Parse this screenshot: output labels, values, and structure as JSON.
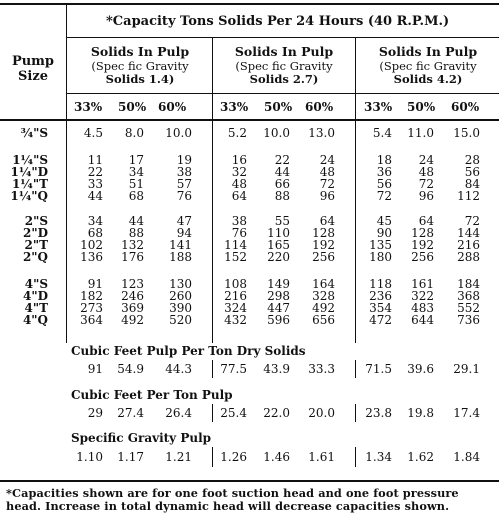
{
  "table": {
    "title": "*Capacity Tons Solids Per 24 Hours (40 R.P.M.)",
    "pump_size_label": [
      "Pump",
      "Size"
    ],
    "groups": [
      {
        "title": "Solids In Pulp",
        "sub1": "(Spec fic Gravity",
        "sub2": "Solids 1.4)"
      },
      {
        "title": "Solids In Pulp",
        "sub1": "(Spec fic Gravity",
        "sub2": "Solids 2.7)"
      },
      {
        "title": "Solids In Pulp",
        "sub1": "(Spec fic Gravity",
        "sub2": "Solids 4.2)"
      }
    ],
    "percent_headers": [
      "33%",
      "50%",
      "60%",
      "33%",
      "50%",
      "60%",
      "33%",
      "50%",
      "60%"
    ],
    "rows": [
      {
        "size": "¾\"S",
        "values": [
          "4.5",
          "8.0",
          "10.0",
          "5.2",
          "10.0",
          "13.0",
          "5.4",
          "11.0",
          "15.0"
        ]
      },
      {
        "size": "1¼\"S",
        "values": [
          "11",
          "17",
          "19",
          "16",
          "22",
          "24",
          "18",
          "24",
          "28"
        ]
      },
      {
        "size": "1¼\"D",
        "values": [
          "22",
          "34",
          "38",
          "32",
          "44",
          "48",
          "36",
          "48",
          "56"
        ]
      },
      {
        "size": "1¼\"T",
        "values": [
          "33",
          "51",
          "57",
          "48",
          "66",
          "72",
          "56",
          "72",
          "84"
        ]
      },
      {
        "size": "1¼\"Q",
        "values": [
          "44",
          "68",
          "76",
          "64",
          "88",
          "96",
          "72",
          "96",
          "112"
        ]
      },
      {
        "size": "2\"S",
        "values": [
          "34",
          "44",
          "47",
          "38",
          "55",
          "64",
          "45",
          "64",
          "72"
        ]
      },
      {
        "size": "2\"D",
        "values": [
          "68",
          "88",
          "94",
          "76",
          "110",
          "128",
          "90",
          "128",
          "144"
        ]
      },
      {
        "size": "2\"T",
        "values": [
          "102",
          "132",
          "141",
          "114",
          "165",
          "192",
          "135",
          "192",
          "216"
        ]
      },
      {
        "size": "2\"Q",
        "values": [
          "136",
          "176",
          "188",
          "152",
          "220",
          "256",
          "180",
          "256",
          "288"
        ]
      },
      {
        "size": "4\"S",
        "values": [
          "91",
          "123",
          "130",
          "108",
          "149",
          "164",
          "118",
          "161",
          "184"
        ]
      },
      {
        "size": "4\"D",
        "values": [
          "182",
          "246",
          "260",
          "216",
          "298",
          "328",
          "236",
          "322",
          "368"
        ]
      },
      {
        "size": "4\"T",
        "values": [
          "273",
          "369",
          "390",
          "324",
          "447",
          "492",
          "354",
          "483",
          "552"
        ]
      },
      {
        "size": "4\"Q",
        "values": [
          "364",
          "492",
          "520",
          "432",
          "596",
          "656",
          "472",
          "644",
          "736"
        ]
      }
    ],
    "sections": [
      {
        "title": "Cubic Feet Pulp Per Ton Dry Solids",
        "values": [
          "91",
          "54.9",
          "44.3",
          "77.5",
          "43.9",
          "33.3",
          "71.5",
          "39.6",
          "29.1"
        ]
      },
      {
        "title": "Cubic Feet Per Ton Pulp",
        "values": [
          "29",
          "27.4",
          "26.4",
          "25.4",
          "22.0",
          "20.0",
          "23.8",
          "19.8",
          "17.4"
        ]
      },
      {
        "title": "Specific Gravity Pulp",
        "values": [
          "1.10",
          "1.17",
          "1.21",
          "1.26",
          "1.46",
          "1.61",
          "1.34",
          "1.62",
          "1.84"
        ]
      }
    ]
  },
  "footnote": {
    "line1": "*Capacities shown are for one foot suction head and one foot pressure",
    "line2": "head.  Increase in total dynamic head will decrease capacities shown."
  }
}
